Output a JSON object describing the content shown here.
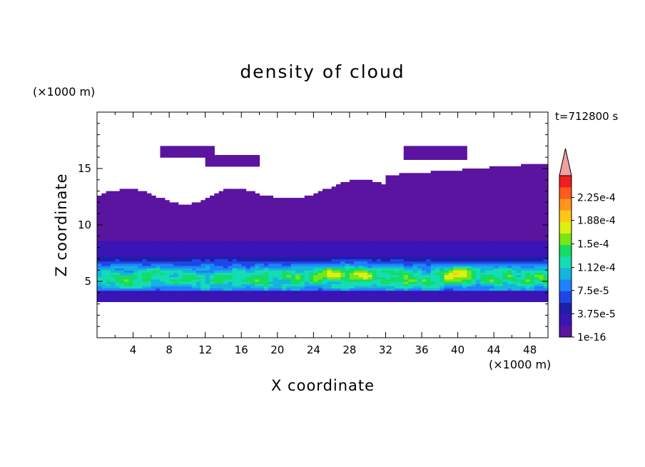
{
  "chart_data": {
    "type": "heatmap",
    "title": "density of cloud",
    "xlabel": "X coordinate",
    "ylabel": "Z coordinate",
    "x_unit_label": "(×1000 m)",
    "z_unit_label": "(×1000 m)",
    "time_label": "t=712800 s",
    "xlim": [
      0,
      50
    ],
    "ylim": [
      0,
      20
    ],
    "x_ticks": [
      "4",
      "8",
      "12",
      "16",
      "20",
      "24",
      "28",
      "32",
      "36",
      "40",
      "44",
      "48"
    ],
    "y_ticks": [
      "5",
      "10",
      "15"
    ],
    "colorbar": {
      "labels": [
        "1e-16",
        "3.75e-5",
        "7.5e-5",
        "1.12e-4",
        "1.5e-4",
        "1.88e-4",
        "2.25e-4"
      ],
      "min": 0,
      "max": 0.00026,
      "extend": "max",
      "levels": [
        {
          "lo": 1e-16,
          "color": "#5a14a0"
        },
        {
          "lo": 1.875e-05,
          "color": "#3a14b4"
        },
        {
          "lo": 3.75e-05,
          "color": "#1e1eaa"
        },
        {
          "lo": 5.625e-05,
          "color": "#1e46e6"
        },
        {
          "lo": 7.5e-05,
          "color": "#1e82ff"
        },
        {
          "lo": 9.375e-05,
          "color": "#14b4dc"
        },
        {
          "lo": 0.0001125,
          "color": "#14dcb4"
        },
        {
          "lo": 0.00013125,
          "color": "#14dc64"
        },
        {
          "lo": 0.00015,
          "color": "#78e614"
        },
        {
          "lo": 0.00016875,
          "color": "#dcf014"
        },
        {
          "lo": 0.0001875,
          "color": "#ffc814"
        },
        {
          "lo": 0.00020625,
          "color": "#ff961e"
        },
        {
          "lo": 0.000225,
          "color": "#ff5a1e"
        },
        {
          "lo": 0.00024375,
          "color": "#f01e1e"
        }
      ],
      "over_color": "#f0a0a0"
    },
    "field_description_points": {
      "cloud_base_km": 3.3,
      "dense_layer_km": [
        4.2,
        6.2
      ],
      "peak_value_approx": 0.00017,
      "peak_x_km": [
        26,
        29,
        40
      ]
    }
  }
}
